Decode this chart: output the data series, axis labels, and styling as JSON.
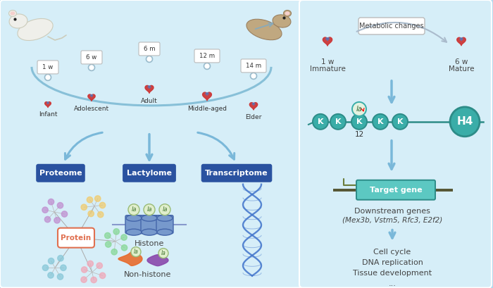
{
  "bg_left": "#d6eef8",
  "bg_right": "#d6eef8",
  "bg_outer": "#b0d8ee",
  "teal": "#3aada8",
  "teal_dark": "#2d8c88",
  "teal_light": "#5cc8c2",
  "blue_arrow": "#90bcd8",
  "navy_label": "#1a3a6e",
  "arrow_blue": "#7ab8d9",
  "dna_blue": "#4a7cc4",
  "olive_arrow": "#6b7c3a",
  "timeline_labels": [
    "1 w",
    "6 w",
    "6 m",
    "12 m",
    "14 m"
  ],
  "stage_labels": [
    "Infant",
    "Adolescent",
    "Adult",
    "Middle-aged",
    "Elder"
  ],
  "omics_labels": [
    "Proteome",
    "Lactylome",
    "Transcriptome"
  ],
  "metabolic_text": "Metabolic changes",
  "la_label": "la",
  "k12_label": "12",
  "target_gene_text": "Target gene",
  "protein_label": "Protein",
  "histone_label": "Histone",
  "nonhistone_label": "Non-histone",
  "downstream_line1": "Downstream genes",
  "downstream_line2": "(Mex3b, Vstm5, Rfc3, E2f2)",
  "effects": [
    "Cell cycle",
    "DNA replication",
    "Tissue development",
    "..."
  ]
}
